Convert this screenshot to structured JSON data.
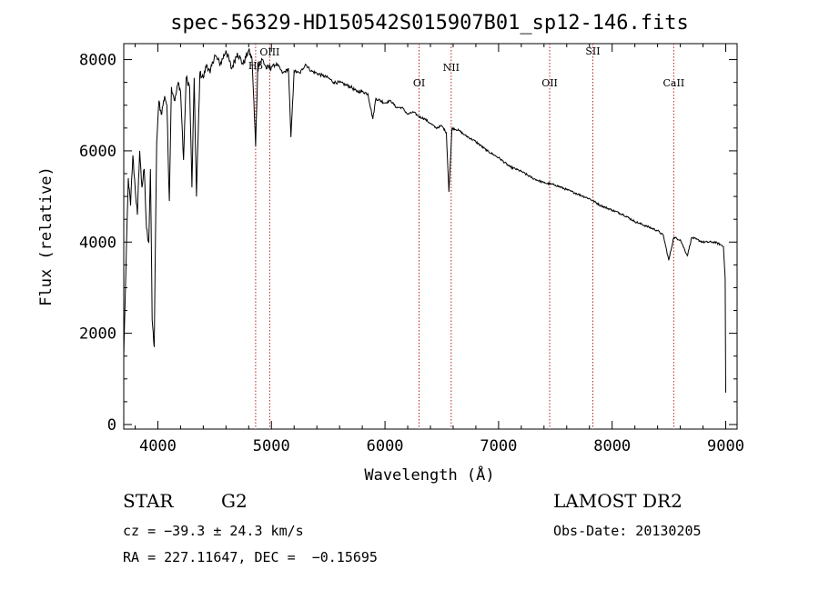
{
  "chart_data": {
    "type": "line",
    "title": "spec-56329-HD150542S015907B01_sp12-146.fits",
    "xlabel": "Wavelength (Å)",
    "ylabel": "Flux (relative)",
    "xlim": [
      3700,
      9100
    ],
    "ylim": [
      -100,
      8350
    ],
    "xticks": [
      4000,
      5000,
      6000,
      7000,
      8000,
      9000
    ],
    "yticks": [
      0,
      2000,
      4000,
      6000,
      8000
    ],
    "grid": false,
    "series": [
      {
        "x": [
          3700,
          3720,
          3740,
          3760,
          3780,
          3800,
          3820,
          3840,
          3860,
          3880,
          3900,
          3920,
          3935,
          3950,
          3968,
          3990,
          4010,
          4030,
          4060,
          4080,
          4101,
          4120,
          4150,
          4180,
          4200,
          4226,
          4250,
          4280,
          4300,
          4320,
          4340,
          4370,
          4400,
          4430,
          4460,
          4500,
          4550,
          4600,
          4650,
          4700,
          4750,
          4800,
          4830,
          4861,
          4880,
          4920,
          4960,
          5000,
          5050,
          5100,
          5150,
          5172,
          5200,
          5250,
          5300,
          5350,
          5400,
          5450,
          5500,
          5550,
          5600,
          5650,
          5700,
          5750,
          5800,
          5850,
          5893,
          5920,
          6000,
          6050,
          6100,
          6150,
          6200,
          6250,
          6300,
          6350,
          6400,
          6450,
          6500,
          6540,
          6563,
          6590,
          6650,
          6700,
          6800,
          6900,
          7000,
          7100,
          7200,
          7300,
          7400,
          7500,
          7600,
          7700,
          7800,
          7900,
          8000,
          8100,
          8200,
          8300,
          8400,
          8450,
          8498,
          8542,
          8600,
          8662,
          8700,
          8800,
          8900,
          8950,
          8980,
          8995,
          9000
        ],
        "values": [
          1500,
          3500,
          5400,
          4800,
          5900,
          5200,
          4600,
          6000,
          5200,
          5600,
          4300,
          4000,
          5600,
          2300,
          1700,
          6200,
          7100,
          6800,
          7200,
          7000,
          4900,
          7400,
          7100,
          7500,
          7300,
          5800,
          7600,
          7400,
          5200,
          7600,
          5000,
          7700,
          7600,
          7900,
          7700,
          8100,
          7900,
          8200,
          7800,
          8150,
          7900,
          8200,
          8000,
          6100,
          7900,
          8000,
          7800,
          7850,
          7900,
          7700,
          7800,
          6300,
          7750,
          7700,
          7900,
          7750,
          7700,
          7650,
          7600,
          7500,
          7500,
          7450,
          7400,
          7300,
          7300,
          7250,
          6700,
          7150,
          7050,
          7100,
          6950,
          6950,
          6800,
          6850,
          6750,
          6700,
          6600,
          6500,
          6550,
          6400,
          5100,
          6500,
          6450,
          6350,
          6200,
          6000,
          5850,
          5650,
          5550,
          5400,
          5300,
          5250,
          5150,
          5050,
          4950,
          4800,
          4700,
          4600,
          4450,
          4350,
          4250,
          4150,
          3600,
          4100,
          4050,
          3700,
          4100,
          4000,
          4000,
          3950,
          3900,
          3200,
          700
        ]
      }
    ],
    "lines": [
      {
        "label": "Hβ",
        "x": 4861
      },
      {
        "label": "OIII",
        "x": 4985
      },
      {
        "label": "OI",
        "x": 6300
      },
      {
        "label": "NII",
        "x": 6583
      },
      {
        "label": "OII",
        "x": 7450
      },
      {
        "label": "SII",
        "x": 7830
      },
      {
        "label": "CaII",
        "x": 8542
      }
    ]
  },
  "info": {
    "class": "STAR",
    "subclass": "G2",
    "cz": "cz = −39.3 ± 24.3 km/s",
    "coords": "RA = 227.11647, DEC =  −0.15695",
    "survey": "LAMOST DR2",
    "obs_date": "Obs-Date: 20130205"
  }
}
